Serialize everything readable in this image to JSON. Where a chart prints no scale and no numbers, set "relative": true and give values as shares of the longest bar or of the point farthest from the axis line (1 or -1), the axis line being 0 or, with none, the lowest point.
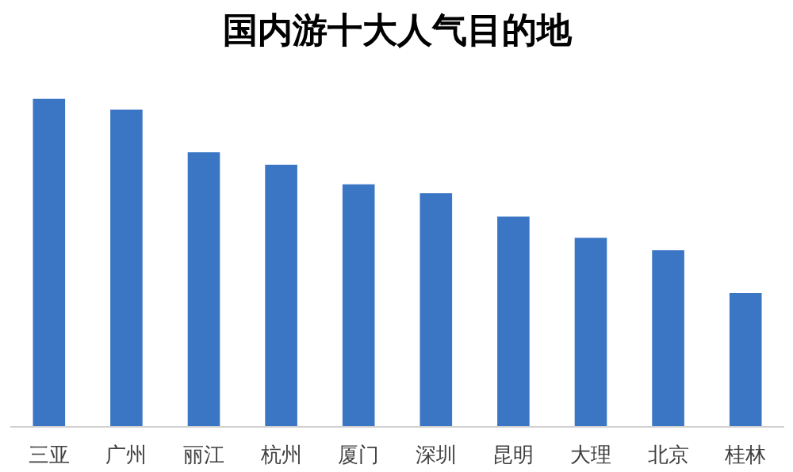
{
  "chart_data": {
    "type": "bar",
    "title": "国内游十大人气目的地",
    "relative": true,
    "categories": [
      "三亚",
      "广州",
      "丽江",
      "杭州",
      "厦门",
      "深圳",
      "昆明",
      "大理",
      "北京",
      "桂林"
    ],
    "series": [
      {
        "color": "#3a76c4",
        "values": [
          1,
          0.967,
          0.837,
          0.799,
          0.739,
          0.712,
          0.641,
          0.576,
          0.538,
          0.408
        ]
      }
    ],
    "grid": false
  }
}
